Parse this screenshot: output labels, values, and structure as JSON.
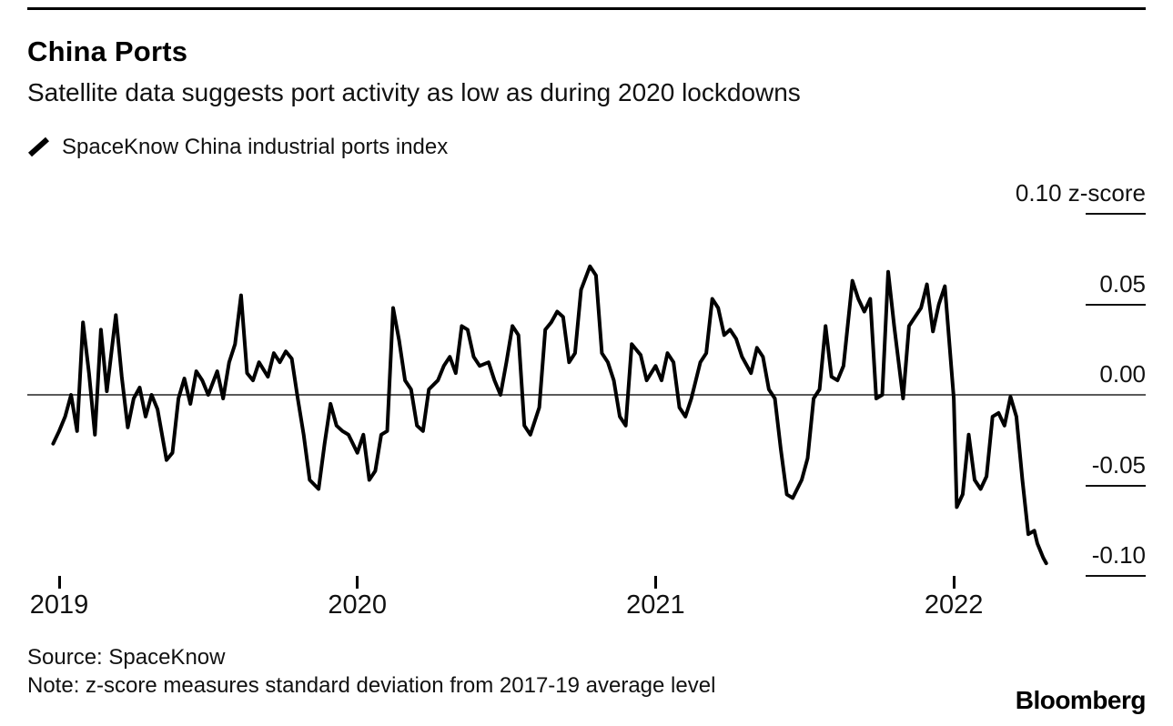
{
  "header": {
    "title": "China Ports",
    "subtitle": "Satellite data suggests port activity as low as during 2020 lockdowns"
  },
  "legend": {
    "label": "SpaceKnow China industrial ports index",
    "marker": "line-series-icon"
  },
  "footer": {
    "source": "Source: SpaceKnow",
    "note": "Note: z-score measures standard deviation from 2017-19 average level",
    "brand": "Bloomberg"
  },
  "chart_data": {
    "type": "line",
    "title": "China Ports",
    "subtitle": "Satellite data suggests port activity as low as during 2020 lockdowns",
    "xlabel": "",
    "ylabel": "z-score",
    "legend_position": "top-left",
    "grid": "zero-baseline-only",
    "line_color": "#000000",
    "zero_line_color": "#5a5a5a",
    "xlim": [
      2018.95,
      2022.45
    ],
    "ylim": [
      -0.113,
      0.121
    ],
    "x_ticks": [
      {
        "value": 2019,
        "label": "2019"
      },
      {
        "value": 2020,
        "label": "2020"
      },
      {
        "value": 2021,
        "label": "2021"
      },
      {
        "value": 2022,
        "label": "2022"
      }
    ],
    "y_ticks": [
      {
        "value": 0.1,
        "label": "0.10 z-score"
      },
      {
        "value": 0.05,
        "label": "0.05"
      },
      {
        "value": 0.0,
        "label": "0.00"
      },
      {
        "value": -0.05,
        "label": "-0.05"
      },
      {
        "value": -0.1,
        "label": "-0.10"
      }
    ],
    "series": [
      {
        "name": "SpaceKnow China industrial ports index",
        "points": [
          [
            2018.98,
            -0.027
          ],
          [
            2019.0,
            -0.02
          ],
          [
            2019.02,
            -0.012
          ],
          [
            2019.04,
            0.0
          ],
          [
            2019.06,
            -0.02
          ],
          [
            2019.08,
            0.04
          ],
          [
            2019.1,
            0.012
          ],
          [
            2019.12,
            -0.022
          ],
          [
            2019.14,
            0.036
          ],
          [
            2019.16,
            0.002
          ],
          [
            2019.19,
            0.044
          ],
          [
            2019.21,
            0.01
          ],
          [
            2019.23,
            -0.018
          ],
          [
            2019.25,
            -0.002
          ],
          [
            2019.27,
            0.004
          ],
          [
            2019.29,
            -0.012
          ],
          [
            2019.31,
            0.0
          ],
          [
            2019.33,
            -0.008
          ],
          [
            2019.36,
            -0.036
          ],
          [
            2019.38,
            -0.032
          ],
          [
            2019.4,
            -0.002
          ],
          [
            2019.42,
            0.009
          ],
          [
            2019.44,
            -0.005
          ],
          [
            2019.46,
            0.013
          ],
          [
            2019.48,
            0.008
          ],
          [
            2019.5,
            0.0
          ],
          [
            2019.53,
            0.013
          ],
          [
            2019.55,
            -0.002
          ],
          [
            2019.57,
            0.018
          ],
          [
            2019.59,
            0.028
          ],
          [
            2019.61,
            0.055
          ],
          [
            2019.63,
            0.012
          ],
          [
            2019.65,
            0.008
          ],
          [
            2019.67,
            0.018
          ],
          [
            2019.7,
            0.01
          ],
          [
            2019.72,
            0.023
          ],
          [
            2019.74,
            0.018
          ],
          [
            2019.76,
            0.024
          ],
          [
            2019.78,
            0.02
          ],
          [
            2019.8,
            -0.002
          ],
          [
            2019.82,
            -0.022
          ],
          [
            2019.84,
            -0.047
          ],
          [
            2019.87,
            -0.052
          ],
          [
            2019.89,
            -0.027
          ],
          [
            2019.91,
            -0.005
          ],
          [
            2019.93,
            -0.017
          ],
          [
            2019.95,
            -0.02
          ],
          [
            2019.97,
            -0.022
          ],
          [
            2020.0,
            -0.032
          ],
          [
            2020.02,
            -0.022
          ],
          [
            2020.04,
            -0.047
          ],
          [
            2020.06,
            -0.042
          ],
          [
            2020.08,
            -0.022
          ],
          [
            2020.1,
            -0.02
          ],
          [
            2020.12,
            0.048
          ],
          [
            2020.14,
            0.03
          ],
          [
            2020.16,
            0.008
          ],
          [
            2020.18,
            0.003
          ],
          [
            2020.2,
            -0.017
          ],
          [
            2020.22,
            -0.02
          ],
          [
            2020.24,
            0.003
          ],
          [
            2020.27,
            0.008
          ],
          [
            2020.29,
            0.016
          ],
          [
            2020.31,
            0.021
          ],
          [
            2020.33,
            0.012
          ],
          [
            2020.35,
            0.038
          ],
          [
            2020.37,
            0.036
          ],
          [
            2020.39,
            0.021
          ],
          [
            2020.41,
            0.016
          ],
          [
            2020.44,
            0.018
          ],
          [
            2020.46,
            0.008
          ],
          [
            2020.48,
            0.0
          ],
          [
            2020.5,
            0.018
          ],
          [
            2020.52,
            0.038
          ],
          [
            2020.54,
            0.033
          ],
          [
            2020.56,
            -0.017
          ],
          [
            2020.58,
            -0.022
          ],
          [
            2020.61,
            -0.007
          ],
          [
            2020.63,
            0.036
          ],
          [
            2020.65,
            0.04
          ],
          [
            2020.67,
            0.046
          ],
          [
            2020.69,
            0.043
          ],
          [
            2020.71,
            0.018
          ],
          [
            2020.73,
            0.023
          ],
          [
            2020.75,
            0.058
          ],
          [
            2020.78,
            0.071
          ],
          [
            2020.8,
            0.066
          ],
          [
            2020.82,
            0.023
          ],
          [
            2020.84,
            0.018
          ],
          [
            2020.86,
            0.008
          ],
          [
            2020.88,
            -0.012
          ],
          [
            2020.9,
            -0.017
          ],
          [
            2020.92,
            0.028
          ],
          [
            2020.95,
            0.022
          ],
          [
            2020.97,
            0.008
          ],
          [
            2021.0,
            0.016
          ],
          [
            2021.02,
            0.008
          ],
          [
            2021.04,
            0.023
          ],
          [
            2021.06,
            0.018
          ],
          [
            2021.08,
            -0.007
          ],
          [
            2021.1,
            -0.012
          ],
          [
            2021.12,
            -0.002
          ],
          [
            2021.15,
            0.018
          ],
          [
            2021.17,
            0.023
          ],
          [
            2021.19,
            0.053
          ],
          [
            2021.21,
            0.048
          ],
          [
            2021.23,
            0.033
          ],
          [
            2021.25,
            0.036
          ],
          [
            2021.27,
            0.031
          ],
          [
            2021.29,
            0.021
          ],
          [
            2021.32,
            0.012
          ],
          [
            2021.34,
            0.026
          ],
          [
            2021.36,
            0.021
          ],
          [
            2021.38,
            0.003
          ],
          [
            2021.4,
            -0.002
          ],
          [
            2021.42,
            -0.03
          ],
          [
            2021.44,
            -0.055
          ],
          [
            2021.46,
            -0.057
          ],
          [
            2021.49,
            -0.047
          ],
          [
            2021.51,
            -0.035
          ],
          [
            2021.53,
            -0.002
          ],
          [
            2021.55,
            0.003
          ],
          [
            2021.57,
            0.038
          ],
          [
            2021.59,
            0.01
          ],
          [
            2021.61,
            0.008
          ],
          [
            2021.63,
            0.016
          ],
          [
            2021.66,
            0.063
          ],
          [
            2021.68,
            0.053
          ],
          [
            2021.7,
            0.046
          ],
          [
            2021.72,
            0.053
          ],
          [
            2021.74,
            -0.002
          ],
          [
            2021.76,
            0.0
          ],
          [
            2021.78,
            0.068
          ],
          [
            2021.8,
            0.038
          ],
          [
            2021.83,
            -0.002
          ],
          [
            2021.85,
            0.038
          ],
          [
            2021.87,
            0.043
          ],
          [
            2021.89,
            0.048
          ],
          [
            2021.91,
            0.061
          ],
          [
            2021.93,
            0.035
          ],
          [
            2021.95,
            0.05
          ],
          [
            2021.97,
            0.06
          ],
          [
            2022.0,
            -0.002
          ],
          [
            2022.01,
            -0.062
          ],
          [
            2022.03,
            -0.055
          ],
          [
            2022.05,
            -0.022
          ],
          [
            2022.07,
            -0.047
          ],
          [
            2022.09,
            -0.052
          ],
          [
            2022.11,
            -0.045
          ],
          [
            2022.13,
            -0.012
          ],
          [
            2022.15,
            -0.01
          ],
          [
            2022.17,
            -0.017
          ],
          [
            2022.19,
            -0.001
          ],
          [
            2022.21,
            -0.012
          ],
          [
            2022.23,
            -0.047
          ],
          [
            2022.25,
            -0.077
          ],
          [
            2022.27,
            -0.075
          ],
          [
            2022.28,
            -0.082
          ],
          [
            2022.3,
            -0.09
          ],
          [
            2022.31,
            -0.093
          ]
        ]
      }
    ]
  }
}
